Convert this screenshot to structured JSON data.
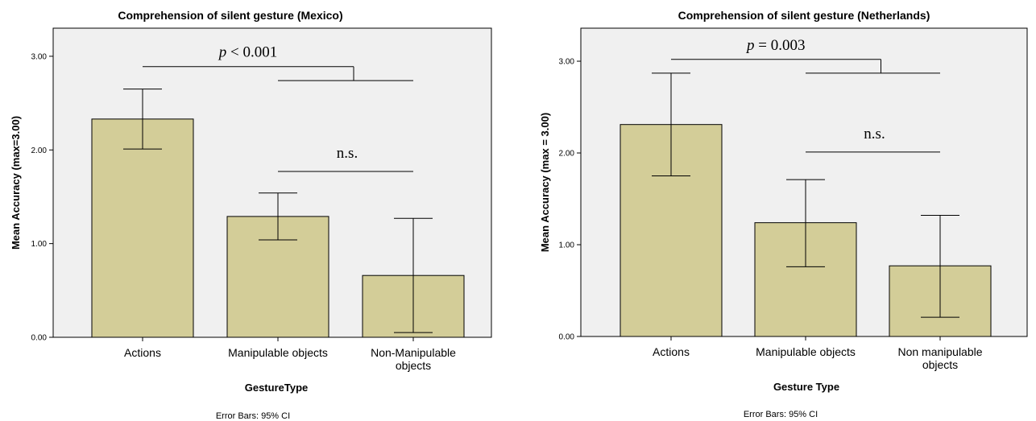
{
  "chart_data": [
    {
      "type": "bar",
      "title": "Comprehension of silent gesture (Mexico)",
      "xlabel": "GestureType",
      "ylabel": "Mean Accuracy (max=3.00)",
      "ylim": [
        0,
        3.3
      ],
      "yticks": [
        "0.00",
        "1.00",
        "2.00",
        "3.00"
      ],
      "categories": [
        [
          "Actions"
        ],
        [
          "Manipulable objects"
        ],
        [
          "Non-Manipulable",
          "objects"
        ]
      ],
      "values": [
        2.33,
        1.29,
        0.66
      ],
      "error_low": [
        2.01,
        1.04,
        0.05
      ],
      "error_high": [
        2.65,
        1.54,
        1.27
      ],
      "bar_color": "#d3cd98",
      "plot_background": "#f0f0f0",
      "annotations": [
        {
          "p": "p",
          "rest": " < 0.001",
          "from": 0,
          "to_group": [
            1,
            2
          ],
          "level": 2.89,
          "inner_level": 2.74
        },
        {
          "label": "n.s.",
          "from": 1,
          "to": 2,
          "level": 1.77
        }
      ],
      "footer": "Error Bars: 95% CI"
    },
    {
      "type": "bar",
      "title": "Comprehension of silent gesture (Netherlands)",
      "xlabel": "Gesture Type",
      "ylabel": "Mean Accuracy (max = 3.00)",
      "ylim": [
        0,
        3.36
      ],
      "yticks": [
        "0.00",
        "1.00",
        "2.00",
        "3.00"
      ],
      "categories": [
        [
          "Actions"
        ],
        [
          "Manipulable objects"
        ],
        [
          "Non manipulable",
          "objects"
        ]
      ],
      "values": [
        2.31,
        1.24,
        0.77
      ],
      "error_low": [
        1.75,
        0.76,
        0.21
      ],
      "error_high": [
        2.87,
        1.71,
        1.32
      ],
      "bar_color": "#d3cd98",
      "plot_background": "#f0f0f0",
      "annotations": [
        {
          "p": "p",
          "rest": " = 0.003",
          "from": 0,
          "to_group": [
            1,
            2
          ],
          "level": 3.02,
          "inner_level": 2.87
        },
        {
          "label": "n.s.",
          "from": 1,
          "to": 2,
          "level": 2.01
        }
      ],
      "footer": "Error Bars: 95% CI"
    }
  ]
}
